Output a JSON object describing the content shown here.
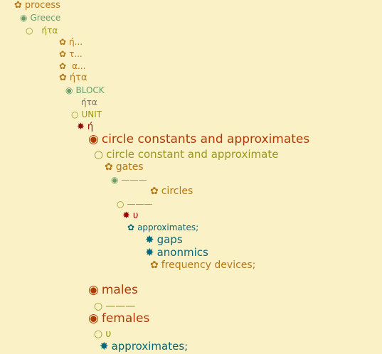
{
  "colors": {
    "background": "#fbf1c7",
    "orange": "#b57614",
    "green": "#689d6a",
    "olive": "#98971a",
    "red": "#9d0006",
    "rust": "#af3a03",
    "teal": "#076678",
    "gray": "#7c6f64"
  },
  "icons": {
    "flower": "✿",
    "fisheye": "◉",
    "circle": "○",
    "star": "✸"
  },
  "tree": [
    {
      "id": "n0",
      "label": "process",
      "icon": "flower",
      "icon_name": "flower-icon",
      "color": "orange"
    },
    {
      "id": "n1",
      "label": "Greece",
      "icon": "fisheye",
      "icon_name": "fisheye-icon",
      "color": "green"
    },
    {
      "id": "n2",
      "label": "ήτα",
      "icon": "circle",
      "icon_name": "circle-icon",
      "color": "olive"
    },
    {
      "id": "n3",
      "label": "ή...",
      "icon": "flower",
      "icon_name": "flower-icon",
      "color": "orange"
    },
    {
      "id": "n4",
      "label": "τ...",
      "icon": "flower",
      "icon_name": "flower-icon",
      "color": "orange"
    },
    {
      "id": "n5",
      "label": "α...",
      "icon": "flower",
      "icon_name": "flower-icon",
      "color": "orange"
    },
    {
      "id": "n6",
      "label": "ήτα",
      "icon": "flower",
      "icon_name": "flower-icon",
      "color": "orange"
    },
    {
      "id": "n7",
      "label": "BLOCK",
      "icon": "fisheye",
      "icon_name": "fisheye-icon",
      "color": "green"
    },
    {
      "id": "n8",
      "label": "ήτα",
      "icon": "",
      "icon_name": "",
      "color": "gray"
    },
    {
      "id": "n9",
      "label": "UNIT",
      "icon": "circle",
      "icon_name": "circle-icon",
      "color": "olive"
    },
    {
      "id": "n10",
      "label": "ή",
      "icon": "star",
      "icon_name": "star-icon",
      "color": "red"
    },
    {
      "id": "n11",
      "label": "circle constants and approximates",
      "icon": "fisheye",
      "icon_name": "fisheye-icon",
      "color": "rust"
    },
    {
      "id": "n12",
      "label": "circle constant and approximate",
      "icon": "circle",
      "icon_name": "circle-icon",
      "color": "olive"
    },
    {
      "id": "n13",
      "label": "gates",
      "icon": "flower",
      "icon_name": "flower-icon",
      "color": "orange"
    },
    {
      "id": "n14",
      "label": "———",
      "icon": "fisheye",
      "icon_name": "fisheye-icon",
      "color": "green"
    },
    {
      "id": "n15",
      "label": "circles",
      "icon": "flower",
      "icon_name": "flower-icon",
      "color": "orange"
    },
    {
      "id": "n16",
      "label": "———",
      "icon": "circle",
      "icon_name": "circle-icon",
      "color": "olive"
    },
    {
      "id": "n17",
      "label": "υ",
      "icon": "star",
      "icon_name": "star-icon",
      "color": "red"
    },
    {
      "id": "n18",
      "label": "approximates;",
      "icon": "flower",
      "icon_name": "flower-icon",
      "color": "teal"
    },
    {
      "id": "n19",
      "label": "gaps",
      "icon": "star",
      "icon_name": "star-icon",
      "color": "teal"
    },
    {
      "id": "n20",
      "label": "anonmics",
      "icon": "star",
      "icon_name": "star-icon",
      "color": "teal"
    },
    {
      "id": "n21",
      "label": "frequency devices;",
      "icon": "flower",
      "icon_name": "flower-icon",
      "color": "orange"
    },
    {
      "id": "n22",
      "label": "males",
      "icon": "fisheye",
      "icon_name": "fisheye-icon",
      "color": "rust"
    },
    {
      "id": "n23",
      "label": "———",
      "icon": "circle",
      "icon_name": "circle-icon",
      "color": "olive"
    },
    {
      "id": "n24",
      "label": "females",
      "icon": "fisheye",
      "icon_name": "fisheye-icon",
      "color": "rust"
    },
    {
      "id": "n25",
      "label": "υ",
      "icon": "circle",
      "icon_name": "circle-icon",
      "color": "olive"
    },
    {
      "id": "n26",
      "label": "approximates;",
      "icon": "star",
      "icon_name": "star-icon",
      "color": "teal"
    }
  ]
}
